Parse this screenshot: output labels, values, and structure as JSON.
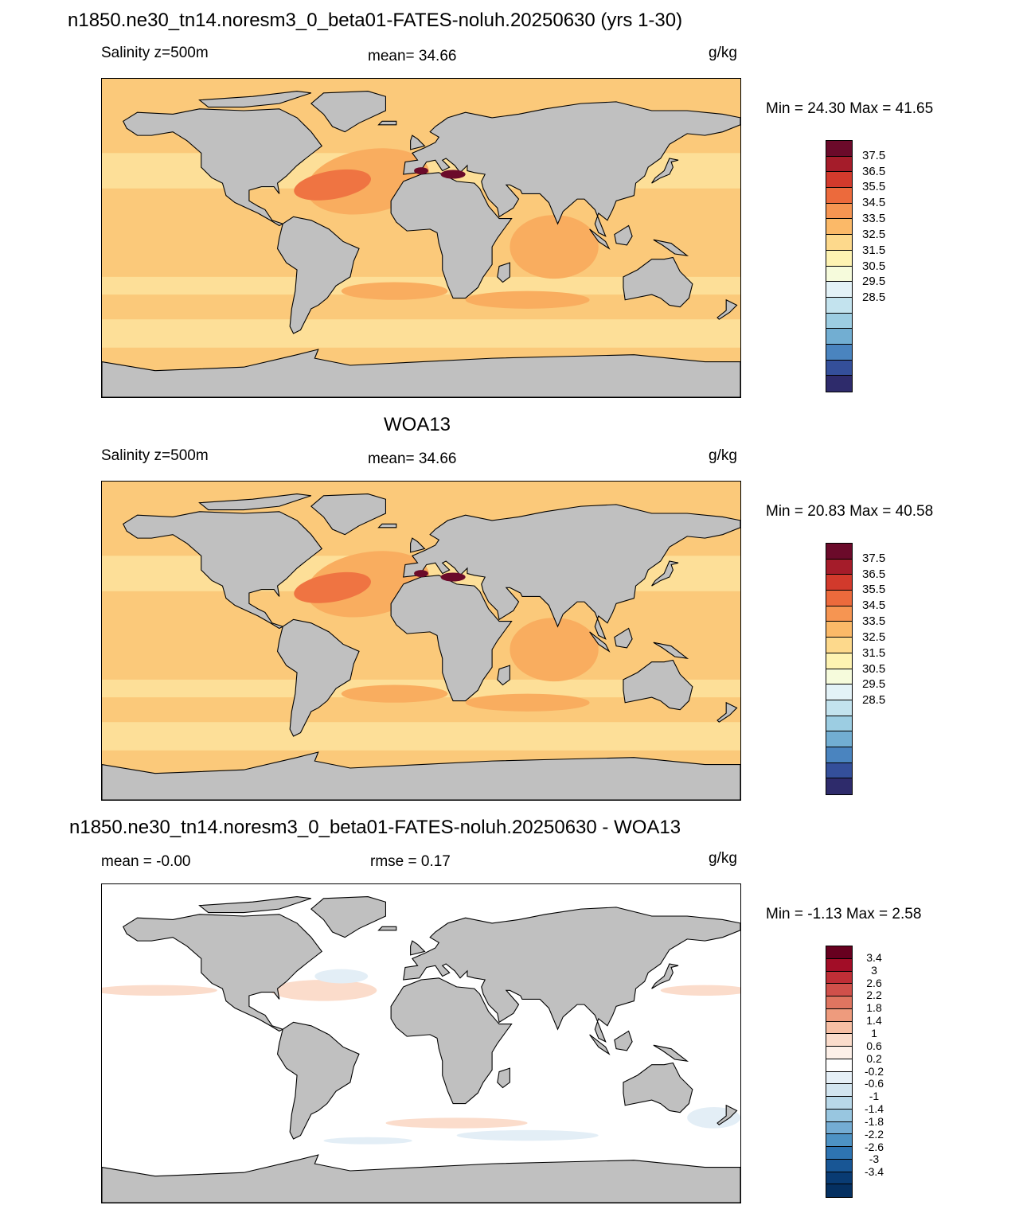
{
  "panel1": {
    "title": "n1850.ne30_tn14.noresm3_0_beta01-FATES-noluh.20250630 (yrs 1-30)",
    "left": "Salinity z=500m",
    "center": "mean=  34.66",
    "units": "g/kg",
    "minmax": "Min =  24.30 Max =  41.65"
  },
  "panel2": {
    "title": "WOA13",
    "left": "Salinity z=500m",
    "center": "mean=  34.66",
    "units": "g/kg",
    "minmax": "Min =  20.83 Max =  40.58"
  },
  "panel3": {
    "title": "n1850.ne30_tn14.noresm3_0_beta01-FATES-noluh.20250630 - WOA13",
    "left": "mean =  -0.00",
    "center": "rmse =   0.17",
    "units": "g/kg",
    "minmax": "Min =  -1.13 Max =   2.58"
  },
  "salinity_colorbar": {
    "colors": [
      "#6b0a2a",
      "#a51c2a",
      "#d23a2c",
      "#ec6a3c",
      "#f69552",
      "#fbb968",
      "#fdd98c",
      "#fef3b2",
      "#f6fbdc",
      "#e3f2f7",
      "#c3e3ee",
      "#9ccde2",
      "#72aed2",
      "#4a84bf",
      "#344f9a",
      "#2e2b6b"
    ],
    "labels": [
      "37.5",
      "36.5",
      "35.5",
      "34.5",
      "33.5",
      "32.5",
      "31.5",
      "30.5",
      "29.5",
      "28.5"
    ]
  },
  "diff_colorbar": {
    "colors": [
      "#67001f",
      "#a20d27",
      "#bf2e36",
      "#d0504a",
      "#df7560",
      "#ee9b7d",
      "#f7bfa4",
      "#fbdccb",
      "#fdf0e8",
      "#ffffff",
      "#e6f0f7",
      "#d2e5f0",
      "#b8d8e9",
      "#98c6e0",
      "#74acd3",
      "#4d92c4",
      "#2e74b2",
      "#185695",
      "#093b73",
      "#053061"
    ],
    "labels": [
      "3.4",
      "3",
      "2.6",
      "2.2",
      "1.8",
      "1.4",
      "1",
      "0.6",
      "0.2",
      "-0.2",
      "-0.6",
      "-1",
      "-1.4",
      "-1.8",
      "-2.2",
      "-2.6",
      "-3",
      "-3.4"
    ]
  },
  "map_colors": {
    "land": "#c0c0c0",
    "coast": "#000000",
    "ocean_base": "#fbc97a",
    "ocean_light": "#fddf98",
    "ocean_mid": "#f9ad5f",
    "ocean_high": "#ef7442",
    "ocean_max": "#6b0a2a",
    "diff_white": "#ffffff",
    "diff_pos": "#fbdccb",
    "diff_neg": "#e3eef6"
  }
}
